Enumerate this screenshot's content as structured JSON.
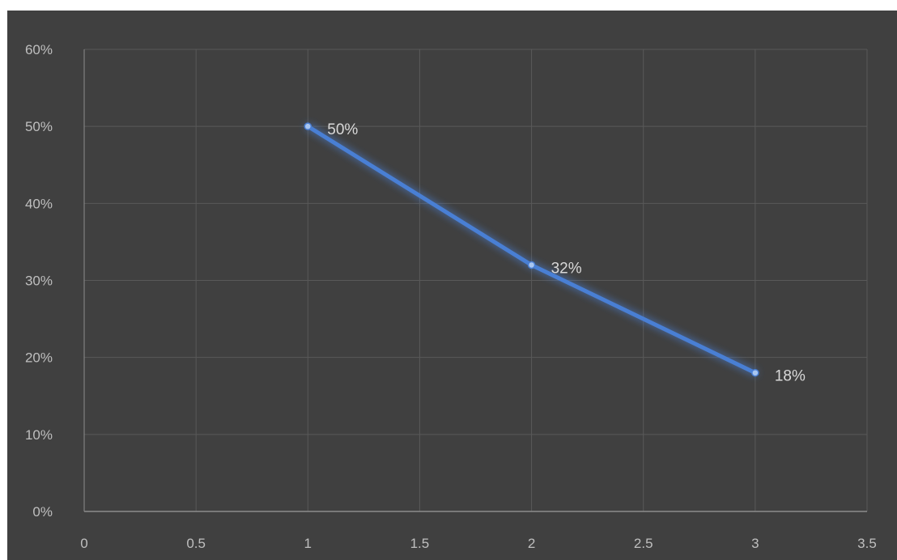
{
  "chart_data": {
    "type": "scatter",
    "mode": "lines+markers",
    "x": [
      1,
      2,
      3
    ],
    "y": [
      0.5,
      0.32,
      0.18
    ],
    "data_labels": [
      "50%",
      "32%",
      "18%"
    ],
    "xlim": [
      0,
      3.5
    ],
    "ylim": [
      0,
      0.6
    ],
    "xticks": [
      0,
      0.5,
      1,
      1.5,
      2,
      2.5,
      3,
      3.5
    ],
    "xtick_labels": [
      "0",
      "0.5",
      "1",
      "1.5",
      "2",
      "2.5",
      "3",
      "3.5"
    ],
    "yticks": [
      0,
      0.1,
      0.2,
      0.3,
      0.4,
      0.5,
      0.6
    ],
    "ytick_labels": [
      "0%",
      "10%",
      "20%",
      "30%",
      "40%",
      "50%",
      "60%"
    ],
    "title": "",
    "xlabel": "",
    "ylabel": "",
    "grid": true,
    "legend": "none",
    "colors": {
      "background": "#404040",
      "gridline": "#595959",
      "axis": "#8c8c8c",
      "line": "#4a7fd4",
      "marker": "#a9c6f0",
      "tick_text": "#bfbfbf",
      "label_text": "#d9d9d9"
    }
  }
}
